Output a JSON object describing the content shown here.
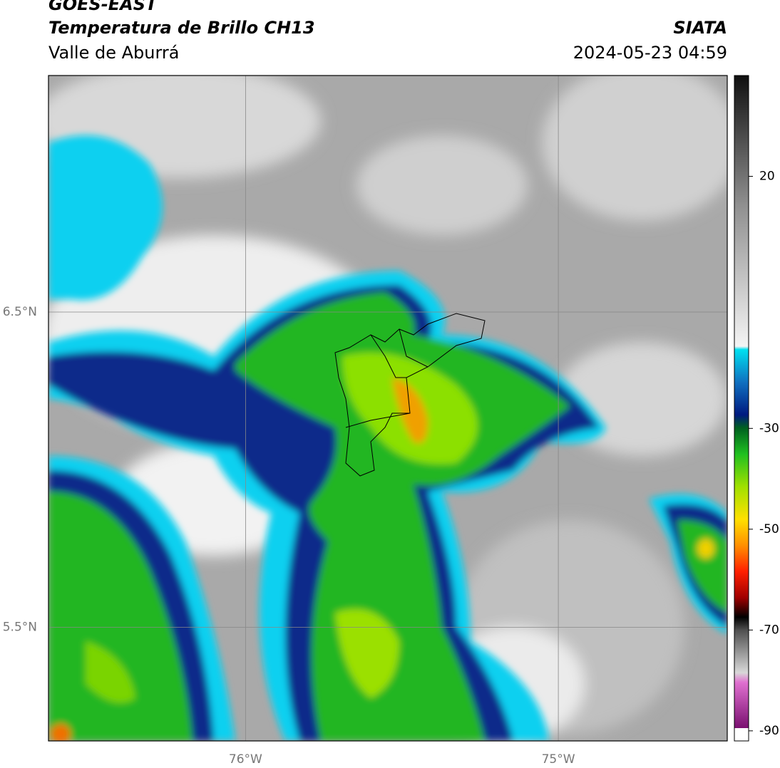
{
  "chart_data": {
    "type": "map",
    "title": "GOES-EAST",
    "subtitle": "Temperatura de Brillo CH13",
    "region": "Valle de Aburrá",
    "source": "SIATA",
    "datetime": "2024-05-23 04:59",
    "xlim": [
      -76.63,
      -74.46
    ],
    "ylim": [
      5.14,
      7.25
    ],
    "xticks": [
      {
        "value": -76,
        "label": "76°W"
      },
      {
        "value": -75,
        "label": "75°W"
      }
    ],
    "yticks": [
      {
        "value": 6.5,
        "label": "6.5°N"
      },
      {
        "value": 5.5,
        "label": "5.5°N"
      }
    ],
    "grid": true,
    "colorbar": {
      "clim": [
        -92,
        40
      ],
      "ticks": [
        20,
        -30,
        -50,
        -70,
        -90
      ]
    }
  }
}
